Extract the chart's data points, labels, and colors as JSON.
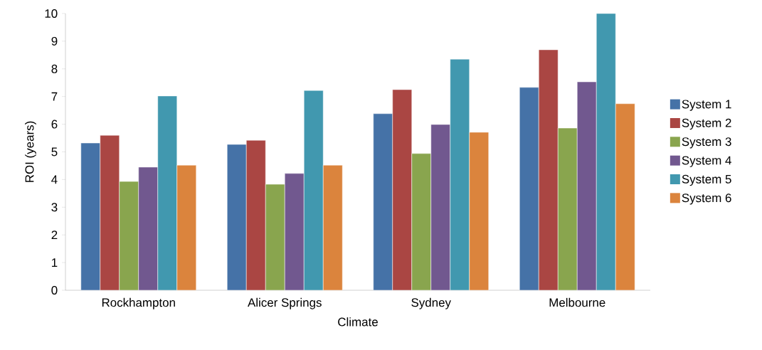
{
  "chart_data": {
    "type": "bar",
    "xlabel": "Climate",
    "ylabel": "ROI (years)",
    "categories": [
      "Rockhampton",
      "Alicer Springs",
      "Sydney",
      "Melbourne"
    ],
    "series": [
      {
        "name": "System 1",
        "color": "#4572a7",
        "values": [
          5.32,
          5.27,
          6.38,
          7.33
        ]
      },
      {
        "name": "System 2",
        "color": "#aa4643",
        "values": [
          5.6,
          5.42,
          7.25,
          8.69
        ]
      },
      {
        "name": "System 3",
        "color": "#89a54e",
        "values": [
          3.93,
          3.83,
          4.94,
          5.86
        ]
      },
      {
        "name": "System 4",
        "color": "#71588f",
        "values": [
          4.45,
          4.22,
          5.99,
          7.53
        ]
      },
      {
        "name": "System 5",
        "color": "#4198af",
        "values": [
          7.02,
          7.22,
          8.35,
          10.0
        ]
      },
      {
        "name": "System 6",
        "color": "#db843d",
        "values": [
          4.52,
          4.52,
          5.71,
          6.74
        ]
      }
    ],
    "ylim": [
      0,
      10
    ],
    "yticks": [
      0,
      1,
      2,
      3,
      4,
      5,
      6,
      7,
      8,
      9,
      10
    ],
    "grid": false,
    "legend": "right"
  }
}
